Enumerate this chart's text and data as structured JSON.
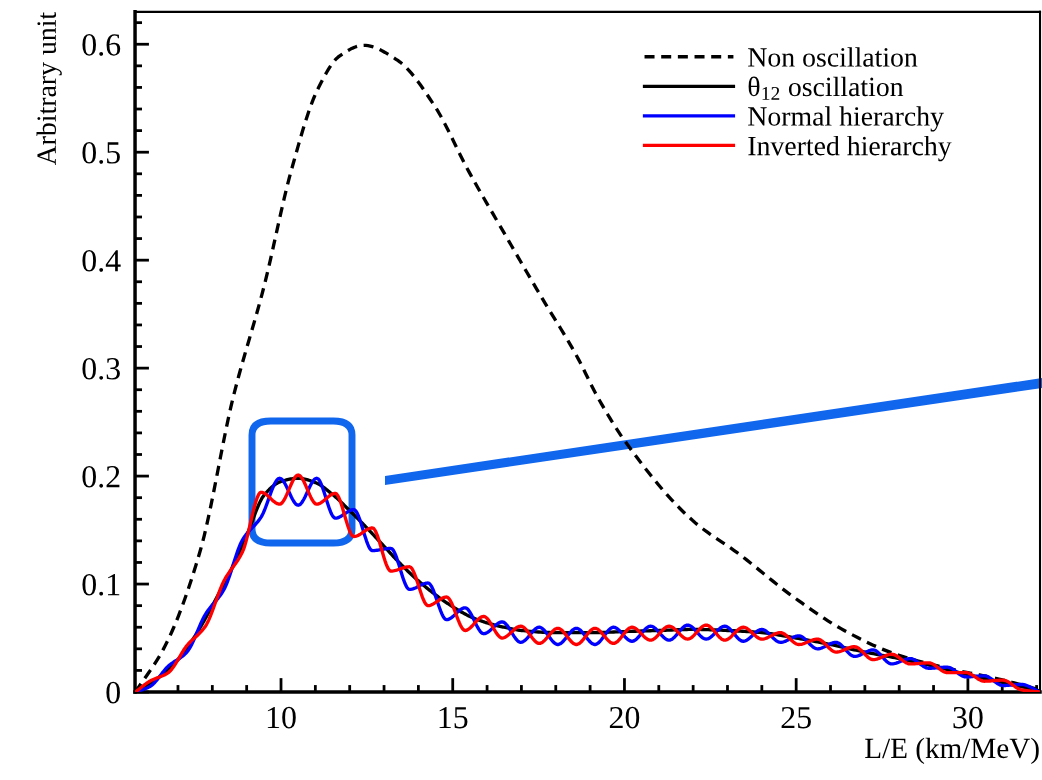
{
  "chart_data": {
    "type": "line",
    "xlabel": "L/E (km/MeV)",
    "ylabel": "Arbitrary unit",
    "xlim": [
      5.75,
      32.1
    ],
    "ylim": [
      0,
      0.63
    ],
    "xticks": [
      10,
      15,
      20,
      25,
      30
    ],
    "yticks": [
      0,
      0.1,
      0.2,
      0.3,
      0.4,
      0.5,
      0.6
    ],
    "legend": "top right",
    "x": [
      5.76,
      6.18,
      6.72,
      7.26,
      7.8,
      8.34,
      8.88,
      9.42,
      9.96,
      10.5,
      11.04,
      11.58,
      12.12,
      12.66,
      13.2,
      13.74,
      14.28,
      14.82,
      15.36,
      15.9,
      16.44,
      16.98,
      17.52,
      18.06,
      18.6,
      19.14,
      19.68,
      20.22,
      20.76,
      21.3,
      21.84,
      22.38,
      22.92,
      23.46,
      24.0,
      24.54,
      25.08,
      25.62,
      26.16,
      26.7,
      27.24,
      27.78,
      28.32,
      28.86,
      29.4,
      29.94,
      30.48,
      31.02,
      31.56,
      32.1
    ],
    "series": [
      {
        "name": "Non oscillation",
        "color": "#000000",
        "line_style": "dashed",
        "x": [
          5.76,
          6.63,
          7.65,
          8.6,
          9.5,
          10.29,
          11.05,
          11.7,
          12.41,
          13.4,
          14.45,
          15.47,
          16.5,
          17.56,
          18.58,
          19.24,
          20.0,
          21.98,
          23.37,
          24.88,
          26.4,
          27.9,
          29.4,
          30.9,
          32.1
        ],
        "values": [
          0,
          0.043,
          0.131,
          0.272,
          0.375,
          0.482,
          0.557,
          0.589,
          0.599,
          0.585,
          0.544,
          0.482,
          0.425,
          0.367,
          0.313,
          0.272,
          0.233,
          0.159,
          0.127,
          0.089,
          0.057,
          0.035,
          0.022,
          0.012,
          0.002
        ]
      },
      {
        "name": "θ$_{12}$ oscillation",
        "color": "#000000",
        "line_style": "solid",
        "x": [
          5.76,
          6.5,
          7.0,
          7.5,
          8.0,
          8.5,
          9.0,
          9.5,
          10.0,
          10.5,
          11.0,
          11.5,
          12.0,
          12.5,
          13.0,
          13.5,
          14.0,
          14.5,
          15.0,
          15.5,
          16.0,
          16.5,
          17.0,
          18.0,
          19.0,
          20.0,
          21.0,
          22.0,
          23.0,
          24.0,
          25.0,
          26.0,
          27.0,
          28.0,
          29.0,
          30.0,
          31.0,
          32.1
        ],
        "values": [
          0,
          0.015,
          0.03,
          0.052,
          0.08,
          0.11,
          0.145,
          0.182,
          0.195,
          0.198,
          0.194,
          0.183,
          0.168,
          0.152,
          0.135,
          0.118,
          0.103,
          0.09,
          0.079,
          0.07,
          0.064,
          0.06,
          0.057,
          0.055,
          0.055,
          0.056,
          0.057,
          0.058,
          0.057,
          0.055,
          0.05,
          0.044,
          0.037,
          0.031,
          0.024,
          0.016,
          0.009,
          0.001
        ]
      },
      {
        "name": "Normal hierarchy",
        "color": "#0000ff",
        "line_style": "solid",
        "values": [
          0,
          0.005,
          0.024,
          0.037,
          0.072,
          0.095,
          0.141,
          0.162,
          0.198,
          0.173,
          0.198,
          0.161,
          0.169,
          0.131,
          0.133,
          0.095,
          0.101,
          0.067,
          0.078,
          0.054,
          0.065,
          0.046,
          0.06,
          0.044,
          0.059,
          0.044,
          0.06,
          0.047,
          0.061,
          0.048,
          0.062,
          0.049,
          0.061,
          0.047,
          0.058,
          0.046,
          0.052,
          0.04,
          0.046,
          0.033,
          0.039,
          0.026,
          0.031,
          0.022,
          0.023,
          0.014,
          0.015,
          0.006,
          0.007,
          0.0
        ]
      },
      {
        "name": "Inverted hierarchy",
        "color": "#ff0000",
        "line_style": "solid",
        "values": [
          0,
          0.01,
          0.018,
          0.043,
          0.061,
          0.103,
          0.13,
          0.185,
          0.174,
          0.201,
          0.174,
          0.184,
          0.144,
          0.152,
          0.112,
          0.116,
          0.08,
          0.088,
          0.057,
          0.07,
          0.05,
          0.061,
          0.045,
          0.059,
          0.044,
          0.059,
          0.045,
          0.06,
          0.048,
          0.061,
          0.049,
          0.062,
          0.048,
          0.06,
          0.049,
          0.055,
          0.044,
          0.049,
          0.037,
          0.042,
          0.03,
          0.035,
          0.026,
          0.027,
          0.018,
          0.018,
          0.01,
          0.011,
          0.002,
          0.0
        ]
      }
    ]
  }
}
